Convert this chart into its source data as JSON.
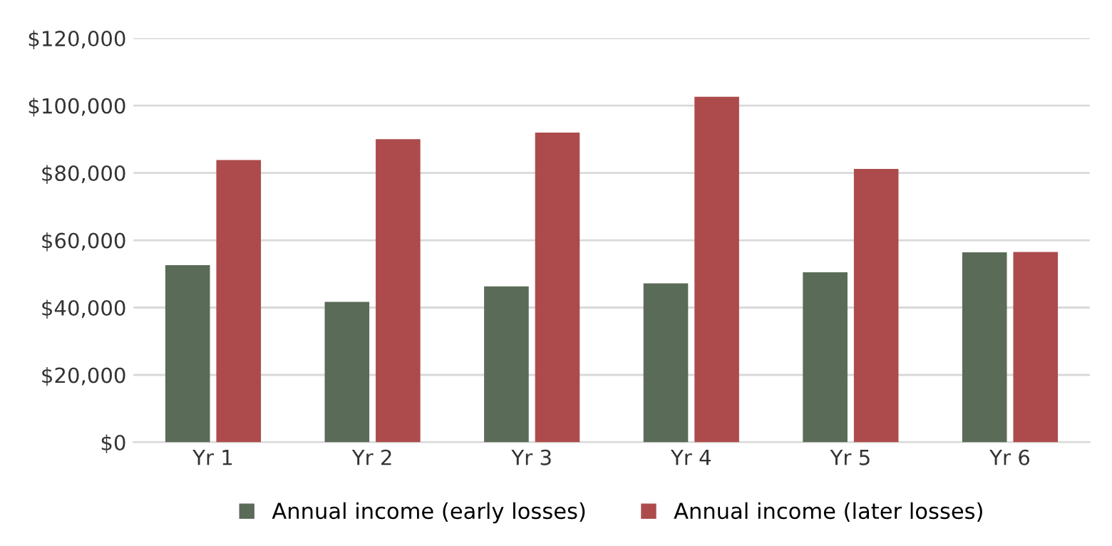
{
  "chart_data": {
    "type": "bar",
    "categories": [
      "Yr 1",
      "Yr 2",
      "Yr 3",
      "Yr 4",
      "Yr 5",
      "Yr 6"
    ],
    "series": [
      {
        "name": "Annual income (early losses)",
        "color": "#5a6b57",
        "values": [
          52600,
          41700,
          46300,
          47200,
          50500,
          56400
        ]
      },
      {
        "name": "Annual income (later losses)",
        "color": "#ad4b4c",
        "values": [
          83800,
          90000,
          92000,
          102600,
          81200,
          56500
        ]
      }
    ],
    "ylim": [
      0,
      120000
    ],
    "yticks": [
      {
        "value": 0,
        "label": "$0"
      },
      {
        "value": 20000,
        "label": "$20,000"
      },
      {
        "value": 40000,
        "label": "$40,000"
      },
      {
        "value": 60000,
        "label": "$60,000"
      },
      {
        "value": 80000,
        "label": "$80,000"
      },
      {
        "value": 100000,
        "label": "$100,000"
      },
      {
        "value": 120000,
        "label": "$120,000"
      }
    ],
    "grid": "y",
    "legend": "bottom"
  }
}
